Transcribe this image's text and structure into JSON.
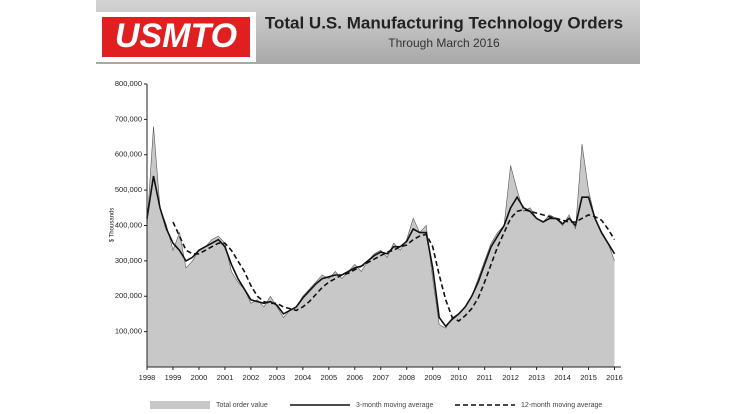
{
  "header": {
    "logo": "USMTO"
  },
  "chart_data": {
    "type": "line",
    "title": "Total U.S. Manufacturing Technology Orders",
    "subtitle": "Through March 2016",
    "y_label": "$ Thousands",
    "x": [
      1998,
      1998.25,
      1998.5,
      1998.75,
      1999,
      1999.25,
      1999.5,
      1999.75,
      2000,
      2000.25,
      2000.5,
      2000.75,
      2001,
      2001.25,
      2001.5,
      2001.75,
      2002,
      2002.25,
      2002.5,
      2002.75,
      2003,
      2003.25,
      2003.5,
      2003.75,
      2004,
      2004.25,
      2004.5,
      2004.75,
      2005,
      2005.25,
      2005.5,
      2005.75,
      2006,
      2006.25,
      2006.5,
      2006.75,
      2007,
      2007.25,
      2007.5,
      2007.75,
      2008,
      2008.25,
      2008.5,
      2008.75,
      2009,
      2009.25,
      2009.5,
      2009.75,
      2010,
      2010.25,
      2010.5,
      2010.75,
      2011,
      2011.25,
      2011.5,
      2011.75,
      2012,
      2012.25,
      2012.5,
      2012.75,
      2013,
      2013.25,
      2013.5,
      2013.75,
      2014,
      2014.25,
      2014.5,
      2014.75,
      2015,
      2015.25,
      2015.5,
      2015.75,
      2016
    ],
    "series": [
      {
        "name": "Total order value",
        "color": "#c8c8c8",
        "style": "area",
        "values": [
          400000,
          680000,
          450000,
          400000,
          330000,
          380000,
          280000,
          300000,
          330000,
          340000,
          360000,
          370000,
          350000,
          270000,
          240000,
          220000,
          180000,
          190000,
          170000,
          200000,
          170000,
          140000,
          160000,
          170000,
          200000,
          220000,
          240000,
          260000,
          250000,
          270000,
          250000,
          270000,
          290000,
          270000,
          300000,
          320000,
          330000,
          310000,
          350000,
          330000,
          360000,
          420000,
          380000,
          400000,
          250000,
          120000,
          110000,
          140000,
          150000,
          170000,
          200000,
          250000,
          300000,
          350000,
          380000,
          400000,
          570000,
          500000,
          440000,
          450000,
          420000,
          410000,
          430000,
          420000,
          400000,
          430000,
          390000,
          630000,
          500000,
          420000,
          380000,
          350000,
          300000
        ]
      },
      {
        "name": "3-month moving average",
        "color": "#111111",
        "style": "solid",
        "values": [
          420000,
          540000,
          450000,
          390000,
          350000,
          330000,
          300000,
          310000,
          330000,
          340000,
          350000,
          360000,
          340000,
          290000,
          250000,
          220000,
          190000,
          185000,
          180000,
          185000,
          175000,
          150000,
          160000,
          170000,
          195000,
          215000,
          235000,
          250000,
          255000,
          260000,
          260000,
          270000,
          280000,
          285000,
          300000,
          315000,
          325000,
          320000,
          340000,
          340000,
          355000,
          390000,
          380000,
          380000,
          280000,
          140000,
          115000,
          135000,
          150000,
          170000,
          200000,
          240000,
          290000,
          340000,
          370000,
          400000,
          450000,
          480000,
          450000,
          440000,
          420000,
          410000,
          420000,
          420000,
          405000,
          420000,
          400000,
          480000,
          480000,
          420000,
          380000,
          350000,
          320000
        ]
      },
      {
        "name": "12-month moving average",
        "color": "#111111",
        "style": "dashed",
        "values": [
          null,
          null,
          null,
          null,
          410000,
          370000,
          330000,
          320000,
          320000,
          330000,
          340000,
          350000,
          350000,
          330000,
          300000,
          270000,
          230000,
          200000,
          185000,
          180000,
          180000,
          170000,
          165000,
          160000,
          170000,
          185000,
          205000,
          225000,
          240000,
          250000,
          260000,
          265000,
          275000,
          285000,
          295000,
          305000,
          315000,
          325000,
          330000,
          340000,
          345000,
          360000,
          370000,
          375000,
          340000,
          260000,
          190000,
          140000,
          130000,
          145000,
          165000,
          195000,
          240000,
          290000,
          340000,
          380000,
          420000,
          440000,
          445000,
          440000,
          435000,
          430000,
          425000,
          420000,
          415000,
          410000,
          410000,
          420000,
          430000,
          425000,
          415000,
          390000,
          360000
        ]
      }
    ],
    "xlim": [
      1998,
      2016.25
    ],
    "xticks": [
      1998,
      1999,
      2000,
      2001,
      2002,
      2003,
      2004,
      2005,
      2006,
      2007,
      2008,
      2009,
      2010,
      2011,
      2012,
      2013,
      2014,
      2015,
      2016
    ],
    "ylim": [
      0,
      800000
    ],
    "yticks": [
      {
        "value": 100000,
        "label": "100,000"
      },
      {
        "value": 200000,
        "label": "200,000"
      },
      {
        "value": 300000,
        "label": "300,000"
      },
      {
        "value": 400000,
        "label": "400,000"
      },
      {
        "value": 500000,
        "label": "500,000"
      },
      {
        "value": 600000,
        "label": "600,000"
      },
      {
        "value": 700000,
        "label": "700,000"
      },
      {
        "value": 800000,
        "label": "800,000"
      }
    ],
    "legend": "bottom"
  }
}
